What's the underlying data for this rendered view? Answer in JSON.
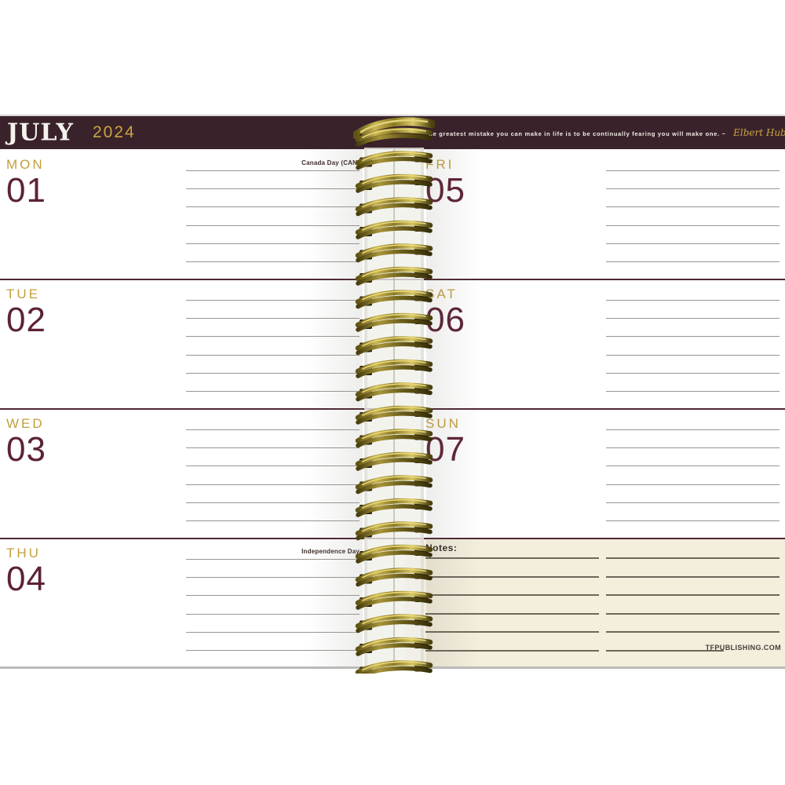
{
  "header": {
    "month": "JULY",
    "year": "2024",
    "quote": "The greatest mistake you can make in life is to be continually fearing you will make one. ~",
    "signature": "Elbert Hubbard"
  },
  "days": [
    {
      "abbr": "MON",
      "date": "01",
      "holiday": "Canada Day (CAN)",
      "page": "left",
      "row": 0
    },
    {
      "abbr": "TUE",
      "date": "02",
      "holiday": "",
      "page": "left",
      "row": 1
    },
    {
      "abbr": "WED",
      "date": "03",
      "holiday": "",
      "page": "left",
      "row": 2
    },
    {
      "abbr": "THU",
      "date": "04",
      "holiday": "Independence Day",
      "page": "left",
      "row": 3
    },
    {
      "abbr": "FRI",
      "date": "05",
      "holiday": "",
      "page": "right",
      "row": 0
    },
    {
      "abbr": "SAT",
      "date": "06",
      "holiday": "",
      "page": "right",
      "row": 1
    },
    {
      "abbr": "SUN",
      "date": "07",
      "holiday": "",
      "page": "right",
      "row": 2
    }
  ],
  "notes": {
    "label": "Notes:",
    "website": "TFPUBLISHING.COM"
  },
  "colors": {
    "header_background": "#3a222b",
    "accent_gold": "#c2a03c",
    "date_maroon": "#5c2236",
    "divider": "#4e2734",
    "notes_background": "#f4eedd"
  }
}
